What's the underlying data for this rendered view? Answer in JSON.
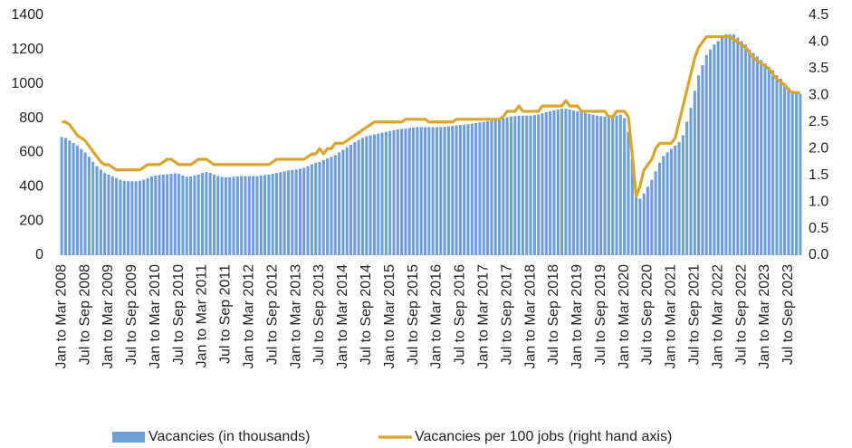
{
  "chart_data": {
    "type": "bar",
    "categories": [
      "Jan to Mar 2008",
      null,
      null,
      null,
      null,
      null,
      "Jul to Sep 2008",
      null,
      null,
      null,
      null,
      null,
      "Jan to Mar 2009",
      null,
      null,
      null,
      null,
      null,
      "Jul to Sep 2009",
      null,
      null,
      null,
      null,
      null,
      "Jan to Mar 2010",
      null,
      null,
      null,
      null,
      null,
      "Jul to Sep 2010",
      null,
      null,
      null,
      null,
      null,
      "Jan to Mar 2011",
      null,
      null,
      null,
      null,
      null,
      "Jul to Sep 2011",
      null,
      null,
      null,
      null,
      null,
      "Jan to Mar 2012",
      null,
      null,
      null,
      null,
      null,
      "Jul to Sep 2012",
      null,
      null,
      null,
      null,
      null,
      "Jan to Mar 2013",
      null,
      null,
      null,
      null,
      null,
      "Jul to Sep 2013",
      null,
      null,
      null,
      null,
      null,
      "Jan to Mar 2014",
      null,
      null,
      null,
      null,
      null,
      "Jul to Sep 2014",
      null,
      null,
      null,
      null,
      null,
      "Jan to Mar 2015",
      null,
      null,
      null,
      null,
      null,
      "Jul to Sep 2015",
      null,
      null,
      null,
      null,
      null,
      "Jan to Mar 2016",
      null,
      null,
      null,
      null,
      null,
      "Jul to Sep 2016",
      null,
      null,
      null,
      null,
      null,
      "Jan to Mar 2017",
      null,
      null,
      null,
      null,
      null,
      "Jul to Sep 2017",
      null,
      null,
      null,
      null,
      null,
      "Jan to Mar 2018",
      null,
      null,
      null,
      null,
      null,
      "Jul to Sep 2018",
      null,
      null,
      null,
      null,
      null,
      "Jan to Mar 2019",
      null,
      null,
      null,
      null,
      null,
      "Jul to Sep 2019",
      null,
      null,
      null,
      null,
      null,
      "Jan to Mar 2020",
      null,
      null,
      null,
      null,
      null,
      "Jul to Sep 2020",
      null,
      null,
      null,
      null,
      null,
      "Jan to Mar 2021",
      null,
      null,
      null,
      null,
      null,
      "Jul to Sep 2021",
      null,
      null,
      null,
      null,
      null,
      "Jan to Mar 2022",
      null,
      null,
      null,
      null,
      null,
      "Jul to Sep 2022",
      null,
      null,
      null,
      null,
      null,
      "Jan to Mar 2023",
      null,
      null,
      null,
      null,
      null,
      "Jul to Sep 2023",
      null,
      null,
      null
    ],
    "series": [
      {
        "name": "Vacancies (in thousands)",
        "color": "#6f9fd8",
        "type": "bar",
        "values": [
          690,
          685,
          670,
          655,
          640,
          620,
          600,
          575,
          545,
          520,
          500,
          480,
          470,
          460,
          450,
          440,
          435,
          432,
          432,
          432,
          435,
          440,
          450,
          460,
          465,
          468,
          470,
          472,
          475,
          478,
          475,
          465,
          458,
          460,
          465,
          470,
          480,
          485,
          480,
          470,
          462,
          458,
          455,
          455,
          458,
          460,
          462,
          462,
          462,
          462,
          462,
          465,
          468,
          470,
          475,
          480,
          485,
          490,
          495,
          498,
          500,
          505,
          510,
          520,
          530,
          540,
          545,
          555,
          565,
          575,
          585,
          600,
          615,
          630,
          645,
          660,
          672,
          685,
          695,
          700,
          705,
          710,
          715,
          720,
          725,
          730,
          735,
          738,
          740,
          742,
          745,
          748,
          748,
          748,
          748,
          748,
          748,
          748,
          750,
          752,
          755,
          758,
          760,
          762,
          765,
          768,
          772,
          775,
          778,
          782,
          785,
          790,
          795,
          800,
          805,
          810,
          812,
          815,
          815,
          815,
          815,
          818,
          822,
          828,
          835,
          840,
          845,
          850,
          855,
          855,
          850,
          845,
          840,
          835,
          830,
          825,
          820,
          815,
          812,
          810,
          808,
          810,
          815,
          820,
          800,
          720,
          560,
          340,
          330,
          360,
          400,
          440,
          490,
          540,
          580,
          600,
          620,
          640,
          660,
          700,
          780,
          860,
          960,
          1050,
          1110,
          1170,
          1200,
          1230,
          1250,
          1270,
          1290,
          1290,
          1290,
          1270,
          1250,
          1230,
          1200,
          1180,
          1160,
          1140,
          1120,
          1100,
          1080,
          1050,
          1030,
          1000,
          980,
          960,
          950,
          940
        ]
      },
      {
        "name": "Vacancies per 100 jobs (right hand axis)",
        "color": "#dba42c",
        "type": "line",
        "axis": "y2",
        "values": [
          2.5,
          2.5,
          2.45,
          2.35,
          2.25,
          2.2,
          2.15,
          2.05,
          1.95,
          1.85,
          1.75,
          1.7,
          1.7,
          1.65,
          1.6,
          1.6,
          1.6,
          1.6,
          1.6,
          1.6,
          1.6,
          1.65,
          1.7,
          1.7,
          1.7,
          1.7,
          1.75,
          1.8,
          1.8,
          1.75,
          1.7,
          1.7,
          1.7,
          1.7,
          1.75,
          1.8,
          1.8,
          1.8,
          1.75,
          1.7,
          1.7,
          1.7,
          1.7,
          1.7,
          1.7,
          1.7,
          1.7,
          1.7,
          1.7,
          1.7,
          1.7,
          1.7,
          1.7,
          1.7,
          1.75,
          1.8,
          1.8,
          1.8,
          1.8,
          1.8,
          1.8,
          1.8,
          1.8,
          1.85,
          1.9,
          1.9,
          2.0,
          1.9,
          2.0,
          2.0,
          2.1,
          2.1,
          2.1,
          2.15,
          2.2,
          2.25,
          2.3,
          2.35,
          2.4,
          2.45,
          2.5,
          2.5,
          2.5,
          2.5,
          2.5,
          2.5,
          2.5,
          2.5,
          2.55,
          2.55,
          2.55,
          2.55,
          2.55,
          2.55,
          2.5,
          2.5,
          2.5,
          2.5,
          2.5,
          2.5,
          2.5,
          2.55,
          2.55,
          2.55,
          2.55,
          2.55,
          2.55,
          2.55,
          2.55,
          2.55,
          2.55,
          2.55,
          2.55,
          2.6,
          2.7,
          2.7,
          2.7,
          2.8,
          2.7,
          2.7,
          2.7,
          2.7,
          2.7,
          2.8,
          2.8,
          2.8,
          2.8,
          2.8,
          2.8,
          2.9,
          2.8,
          2.8,
          2.8,
          2.7,
          2.7,
          2.7,
          2.7,
          2.7,
          2.7,
          2.7,
          2.6,
          2.6,
          2.7,
          2.7,
          2.7,
          2.6,
          1.9,
          1.1,
          1.3,
          1.6,
          1.7,
          1.8,
          2.0,
          2.1,
          2.1,
          2.1,
          2.1,
          2.2,
          2.5,
          2.8,
          3.1,
          3.4,
          3.7,
          3.9,
          4.0,
          4.1,
          4.1,
          4.1,
          4.1,
          4.1,
          4.1,
          4.1,
          4.05,
          4.0,
          3.95,
          3.9,
          3.8,
          3.7,
          3.65,
          3.6,
          3.55,
          3.5,
          3.4,
          3.3,
          3.25,
          3.2,
          3.1,
          3.05,
          3.05,
          3.05
        ]
      }
    ],
    "ylim": [
      0,
      1400
    ],
    "yticks": [
      0,
      200,
      400,
      600,
      800,
      1000,
      1200,
      1400
    ],
    "y2lim": [
      0,
      4.5
    ],
    "y2ticks": [
      {
        "value": 0,
        "label": "0.0"
      },
      {
        "value": 0.5,
        "label": "0.5"
      },
      {
        "value": 1,
        "label": "1.0"
      },
      {
        "value": 1.5,
        "label": "1.5"
      },
      {
        "value": 2,
        "label": "2.0"
      },
      {
        "value": 2.5,
        "label": "2.5"
      },
      {
        "value": 3,
        "label": "3.0"
      },
      {
        "value": 3.5,
        "label": "3.5"
      },
      {
        "value": 4,
        "label": "4.0"
      },
      {
        "value": 4.5,
        "label": "4.5"
      }
    ],
    "grid": false,
    "legend": "bottom"
  }
}
